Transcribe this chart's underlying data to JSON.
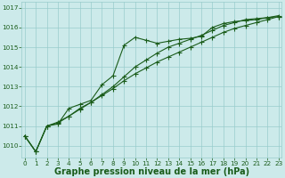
{
  "bg_color": "#cceaea",
  "grid_color": "#99cccc",
  "line_color": "#1a5c1a",
  "xlabel": "Graphe pression niveau de la mer (hPa)",
  "ylim": [
    1009.4,
    1017.3
  ],
  "xlim": [
    -0.3,
    23.3
  ],
  "yticks": [
    1010,
    1011,
    1012,
    1013,
    1014,
    1015,
    1016,
    1017
  ],
  "xticks": [
    0,
    1,
    2,
    3,
    4,
    5,
    6,
    7,
    8,
    9,
    10,
    11,
    12,
    13,
    14,
    15,
    16,
    17,
    18,
    19,
    20,
    21,
    22,
    23
  ],
  "line1_x": [
    0,
    1,
    2,
    3,
    4,
    5,
    6,
    7,
    8,
    9,
    10,
    11,
    12,
    13,
    14,
    15,
    16,
    17,
    18,
    19,
    20,
    21,
    22,
    23
  ],
  "line1_y": [
    1010.5,
    1009.7,
    1011.0,
    1011.1,
    1011.9,
    1012.1,
    1012.3,
    1013.1,
    1013.55,
    1015.1,
    1015.5,
    1015.35,
    1015.2,
    1015.3,
    1015.4,
    1015.45,
    1015.55,
    1016.0,
    1016.2,
    1016.3,
    1016.35,
    1016.4,
    1016.5,
    1016.55
  ],
  "line2_x": [
    0,
    1,
    2,
    3,
    4,
    5,
    6,
    7,
    8,
    9,
    10,
    11,
    12,
    13,
    14,
    15,
    16,
    17,
    18,
    19,
    20,
    21,
    22,
    23
  ],
  "line2_y": [
    1010.5,
    1009.7,
    1011.0,
    1011.15,
    1011.5,
    1011.85,
    1012.2,
    1012.6,
    1013.0,
    1013.5,
    1014.0,
    1014.35,
    1014.7,
    1015.0,
    1015.2,
    1015.4,
    1015.6,
    1015.85,
    1016.1,
    1016.25,
    1016.4,
    1016.45,
    1016.5,
    1016.6
  ],
  "line3_x": [
    0,
    1,
    2,
    3,
    4,
    5,
    6,
    7,
    8,
    9,
    10,
    11,
    12,
    13,
    14,
    15,
    16,
    17,
    18,
    19,
    20,
    21,
    22,
    23
  ],
  "line3_y": [
    1010.5,
    1009.7,
    1011.0,
    1011.2,
    1011.5,
    1011.9,
    1012.2,
    1012.55,
    1012.9,
    1013.3,
    1013.65,
    1013.95,
    1014.25,
    1014.5,
    1014.75,
    1015.0,
    1015.25,
    1015.5,
    1015.75,
    1015.95,
    1016.1,
    1016.25,
    1016.4,
    1016.55
  ],
  "tick_fontsize": 5.2,
  "xlabel_fontsize": 7.0
}
